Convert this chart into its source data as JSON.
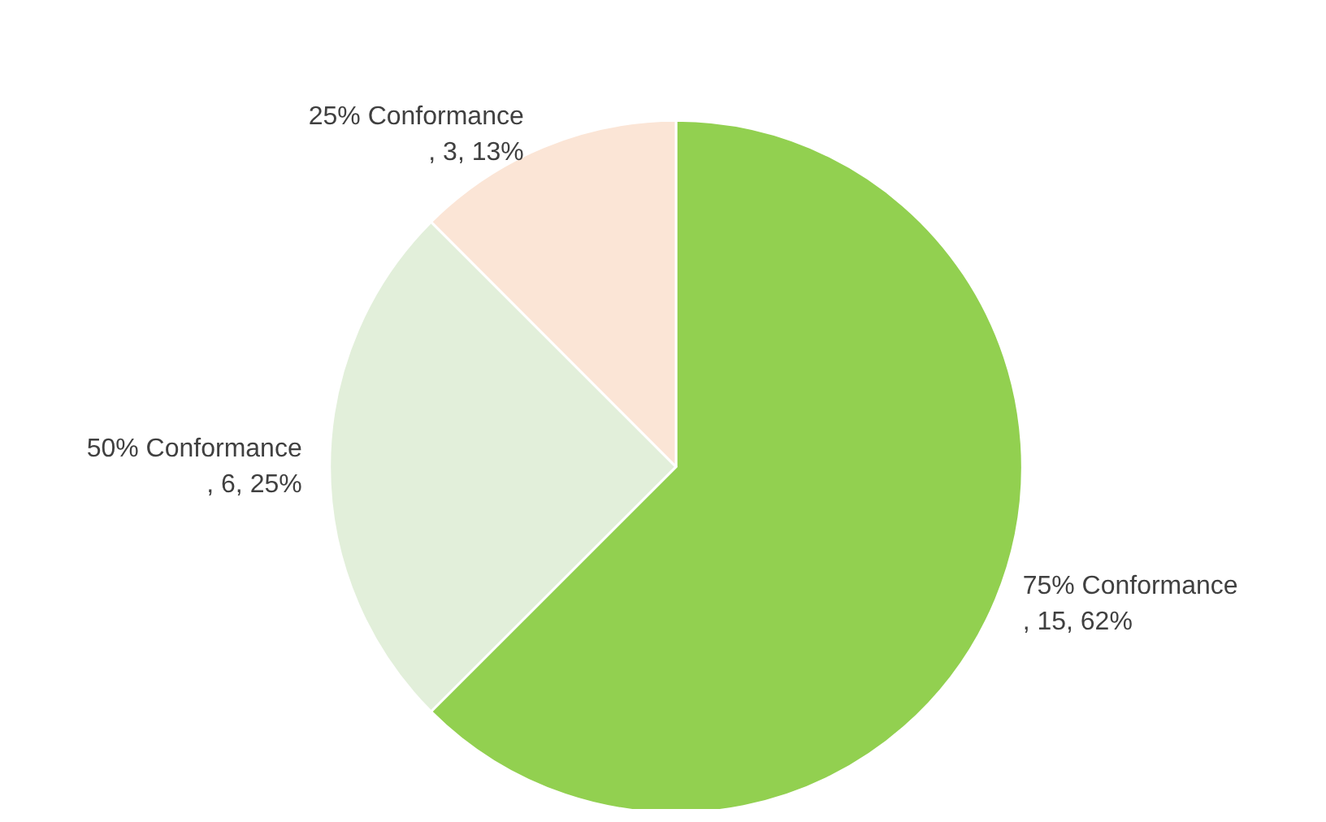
{
  "chart_data": {
    "type": "pie",
    "categories": [
      "75% Conformance",
      "50% Conformance",
      "25% Conformance"
    ],
    "values": [
      15,
      6,
      3
    ],
    "colors": [
      "#92d050",
      "#e2efda",
      "#fbe5d6"
    ],
    "value_labels": [
      ", 15, 62%",
      ", 6, 25%",
      ", 3, 13%"
    ],
    "legend": false
  }
}
